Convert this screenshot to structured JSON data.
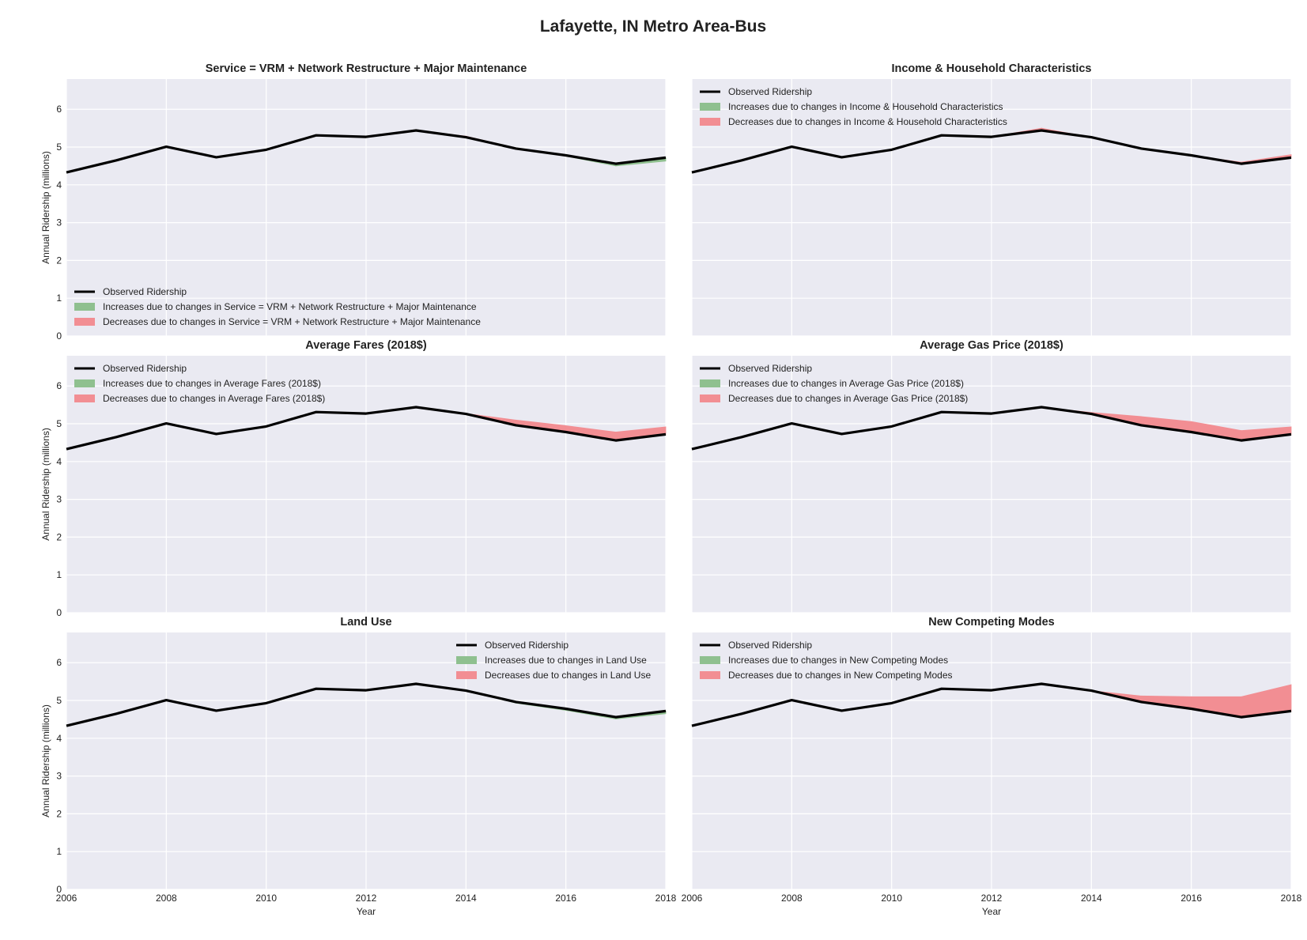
{
  "figure": {
    "title": "Lafayette, IN Metro Area-Bus",
    "ylabel": "Annual Ridership (millions)",
    "xlabel": "Year",
    "legend_observed": "Observed Ridership",
    "colors": {
      "background": "#eaeaf2",
      "grid": "#ffffff",
      "observed": "#000000",
      "increase": "#8fc08f",
      "decrease": "#f28e93"
    }
  },
  "chart_data": [
    {
      "type": "area",
      "title": "Service = VRM + Network Restructure + Major Maintenance",
      "xlim": [
        2006,
        2018
      ],
      "ylim": [
        0,
        6.8
      ],
      "x": [
        2006,
        2007,
        2008,
        2009,
        2010,
        2011,
        2012,
        2013,
        2014,
        2015,
        2016,
        2017,
        2018
      ],
      "observed": [
        4.33,
        4.65,
        5.01,
        4.73,
        4.93,
        5.31,
        5.27,
        5.44,
        5.26,
        4.96,
        4.78,
        4.56,
        4.72
      ],
      "counterfactual": [
        4.33,
        4.65,
        5.01,
        4.73,
        4.93,
        5.31,
        5.27,
        5.44,
        5.29,
        4.98,
        4.76,
        4.5,
        4.63
      ],
      "legend": [
        "Observed Ridership",
        "Increases due to changes in Service = VRM + Network Restructure + Major Maintenance",
        "Decreases due to changes in Service = VRM + Network Restructure + Major Maintenance"
      ],
      "legend_position": "lower-left"
    },
    {
      "type": "area",
      "title": "Income & Household Characteristics",
      "xlim": [
        2006,
        2018
      ],
      "ylim": [
        0,
        6.8
      ],
      "x": [
        2006,
        2007,
        2008,
        2009,
        2010,
        2011,
        2012,
        2013,
        2014,
        2015,
        2016,
        2017,
        2018
      ],
      "observed": [
        4.33,
        4.65,
        5.01,
        4.73,
        4.93,
        5.31,
        5.27,
        5.44,
        5.26,
        4.96,
        4.78,
        4.56,
        4.72
      ],
      "counterfactual": [
        4.33,
        4.65,
        5.01,
        4.73,
        4.93,
        5.31,
        5.27,
        5.5,
        5.26,
        4.96,
        4.78,
        4.6,
        4.8
      ],
      "legend": [
        "Observed Ridership",
        "Increases due to changes in Income & Household Characteristics",
        "Decreases due to changes in Income & Household Characteristics"
      ],
      "legend_position": "upper-left"
    },
    {
      "type": "area",
      "title": "Average Fares (2018$)",
      "xlim": [
        2006,
        2018
      ],
      "ylim": [
        0,
        6.8
      ],
      "x": [
        2006,
        2007,
        2008,
        2009,
        2010,
        2011,
        2012,
        2013,
        2014,
        2015,
        2016,
        2017,
        2018
      ],
      "observed": [
        4.33,
        4.65,
        5.01,
        4.73,
        4.93,
        5.31,
        5.27,
        5.44,
        5.26,
        4.96,
        4.78,
        4.56,
        4.72
      ],
      "counterfactual": [
        4.33,
        4.65,
        5.01,
        4.73,
        4.93,
        5.31,
        5.27,
        5.44,
        5.27,
        5.1,
        4.95,
        4.78,
        4.92
      ],
      "legend": [
        "Observed Ridership",
        "Increases due to changes in Average Fares (2018$)",
        "Decreases due to changes in Average Fares (2018$)"
      ],
      "legend_position": "upper-left"
    },
    {
      "type": "area",
      "title": "Average Gas Price (2018$)",
      "xlim": [
        2006,
        2018
      ],
      "ylim": [
        0,
        6.8
      ],
      "x": [
        2006,
        2007,
        2008,
        2009,
        2010,
        2011,
        2012,
        2013,
        2014,
        2015,
        2016,
        2017,
        2018
      ],
      "observed": [
        4.33,
        4.65,
        5.01,
        4.73,
        4.93,
        5.31,
        5.27,
        5.44,
        5.26,
        4.96,
        4.78,
        4.56,
        4.72
      ],
      "counterfactual": [
        4.33,
        4.65,
        5.01,
        4.73,
        4.93,
        5.31,
        5.27,
        5.44,
        5.3,
        5.19,
        5.06,
        4.82,
        4.92
      ],
      "legend": [
        "Observed Ridership",
        "Increases due to changes in Average Gas Price (2018$)",
        "Decreases due to changes in Average Gas Price (2018$)"
      ],
      "legend_position": "upper-left"
    },
    {
      "type": "area",
      "title": "Land Use",
      "xlim": [
        2006,
        2018
      ],
      "ylim": [
        0,
        6.8
      ],
      "x": [
        2006,
        2007,
        2008,
        2009,
        2010,
        2011,
        2012,
        2013,
        2014,
        2015,
        2016,
        2017,
        2018
      ],
      "observed": [
        4.33,
        4.65,
        5.01,
        4.73,
        4.93,
        5.31,
        5.27,
        5.44,
        5.26,
        4.96,
        4.78,
        4.56,
        4.72
      ],
      "counterfactual": [
        4.33,
        4.65,
        5.01,
        4.73,
        4.93,
        5.31,
        5.27,
        5.44,
        5.26,
        4.93,
        4.74,
        4.51,
        4.65
      ],
      "legend": [
        "Observed Ridership",
        "Increases due to changes in Land Use",
        "Decreases due to changes in Land Use"
      ],
      "legend_position": "upper-right"
    },
    {
      "type": "area",
      "title": "New Competing Modes",
      "xlim": [
        2006,
        2018
      ],
      "ylim": [
        0,
        6.8
      ],
      "x": [
        2006,
        2007,
        2008,
        2009,
        2010,
        2011,
        2012,
        2013,
        2014,
        2015,
        2016,
        2017,
        2018
      ],
      "observed": [
        4.33,
        4.65,
        5.01,
        4.73,
        4.93,
        5.31,
        5.27,
        5.44,
        5.26,
        4.96,
        4.78,
        4.56,
        4.72
      ],
      "counterfactual": [
        4.33,
        4.65,
        5.01,
        4.73,
        4.93,
        5.31,
        5.27,
        5.44,
        5.26,
        5.12,
        5.1,
        5.1,
        5.42
      ],
      "legend": [
        "Observed Ridership",
        "Increases due to changes in New Competing Modes",
        "Decreases due to changes in New Competing Modes"
      ],
      "legend_position": "upper-left"
    }
  ],
  "axes": {
    "yticks": [
      0,
      1,
      2,
      3,
      4,
      5,
      6
    ],
    "xticks": [
      2006,
      2008,
      2010,
      2012,
      2014,
      2016,
      2018
    ]
  }
}
